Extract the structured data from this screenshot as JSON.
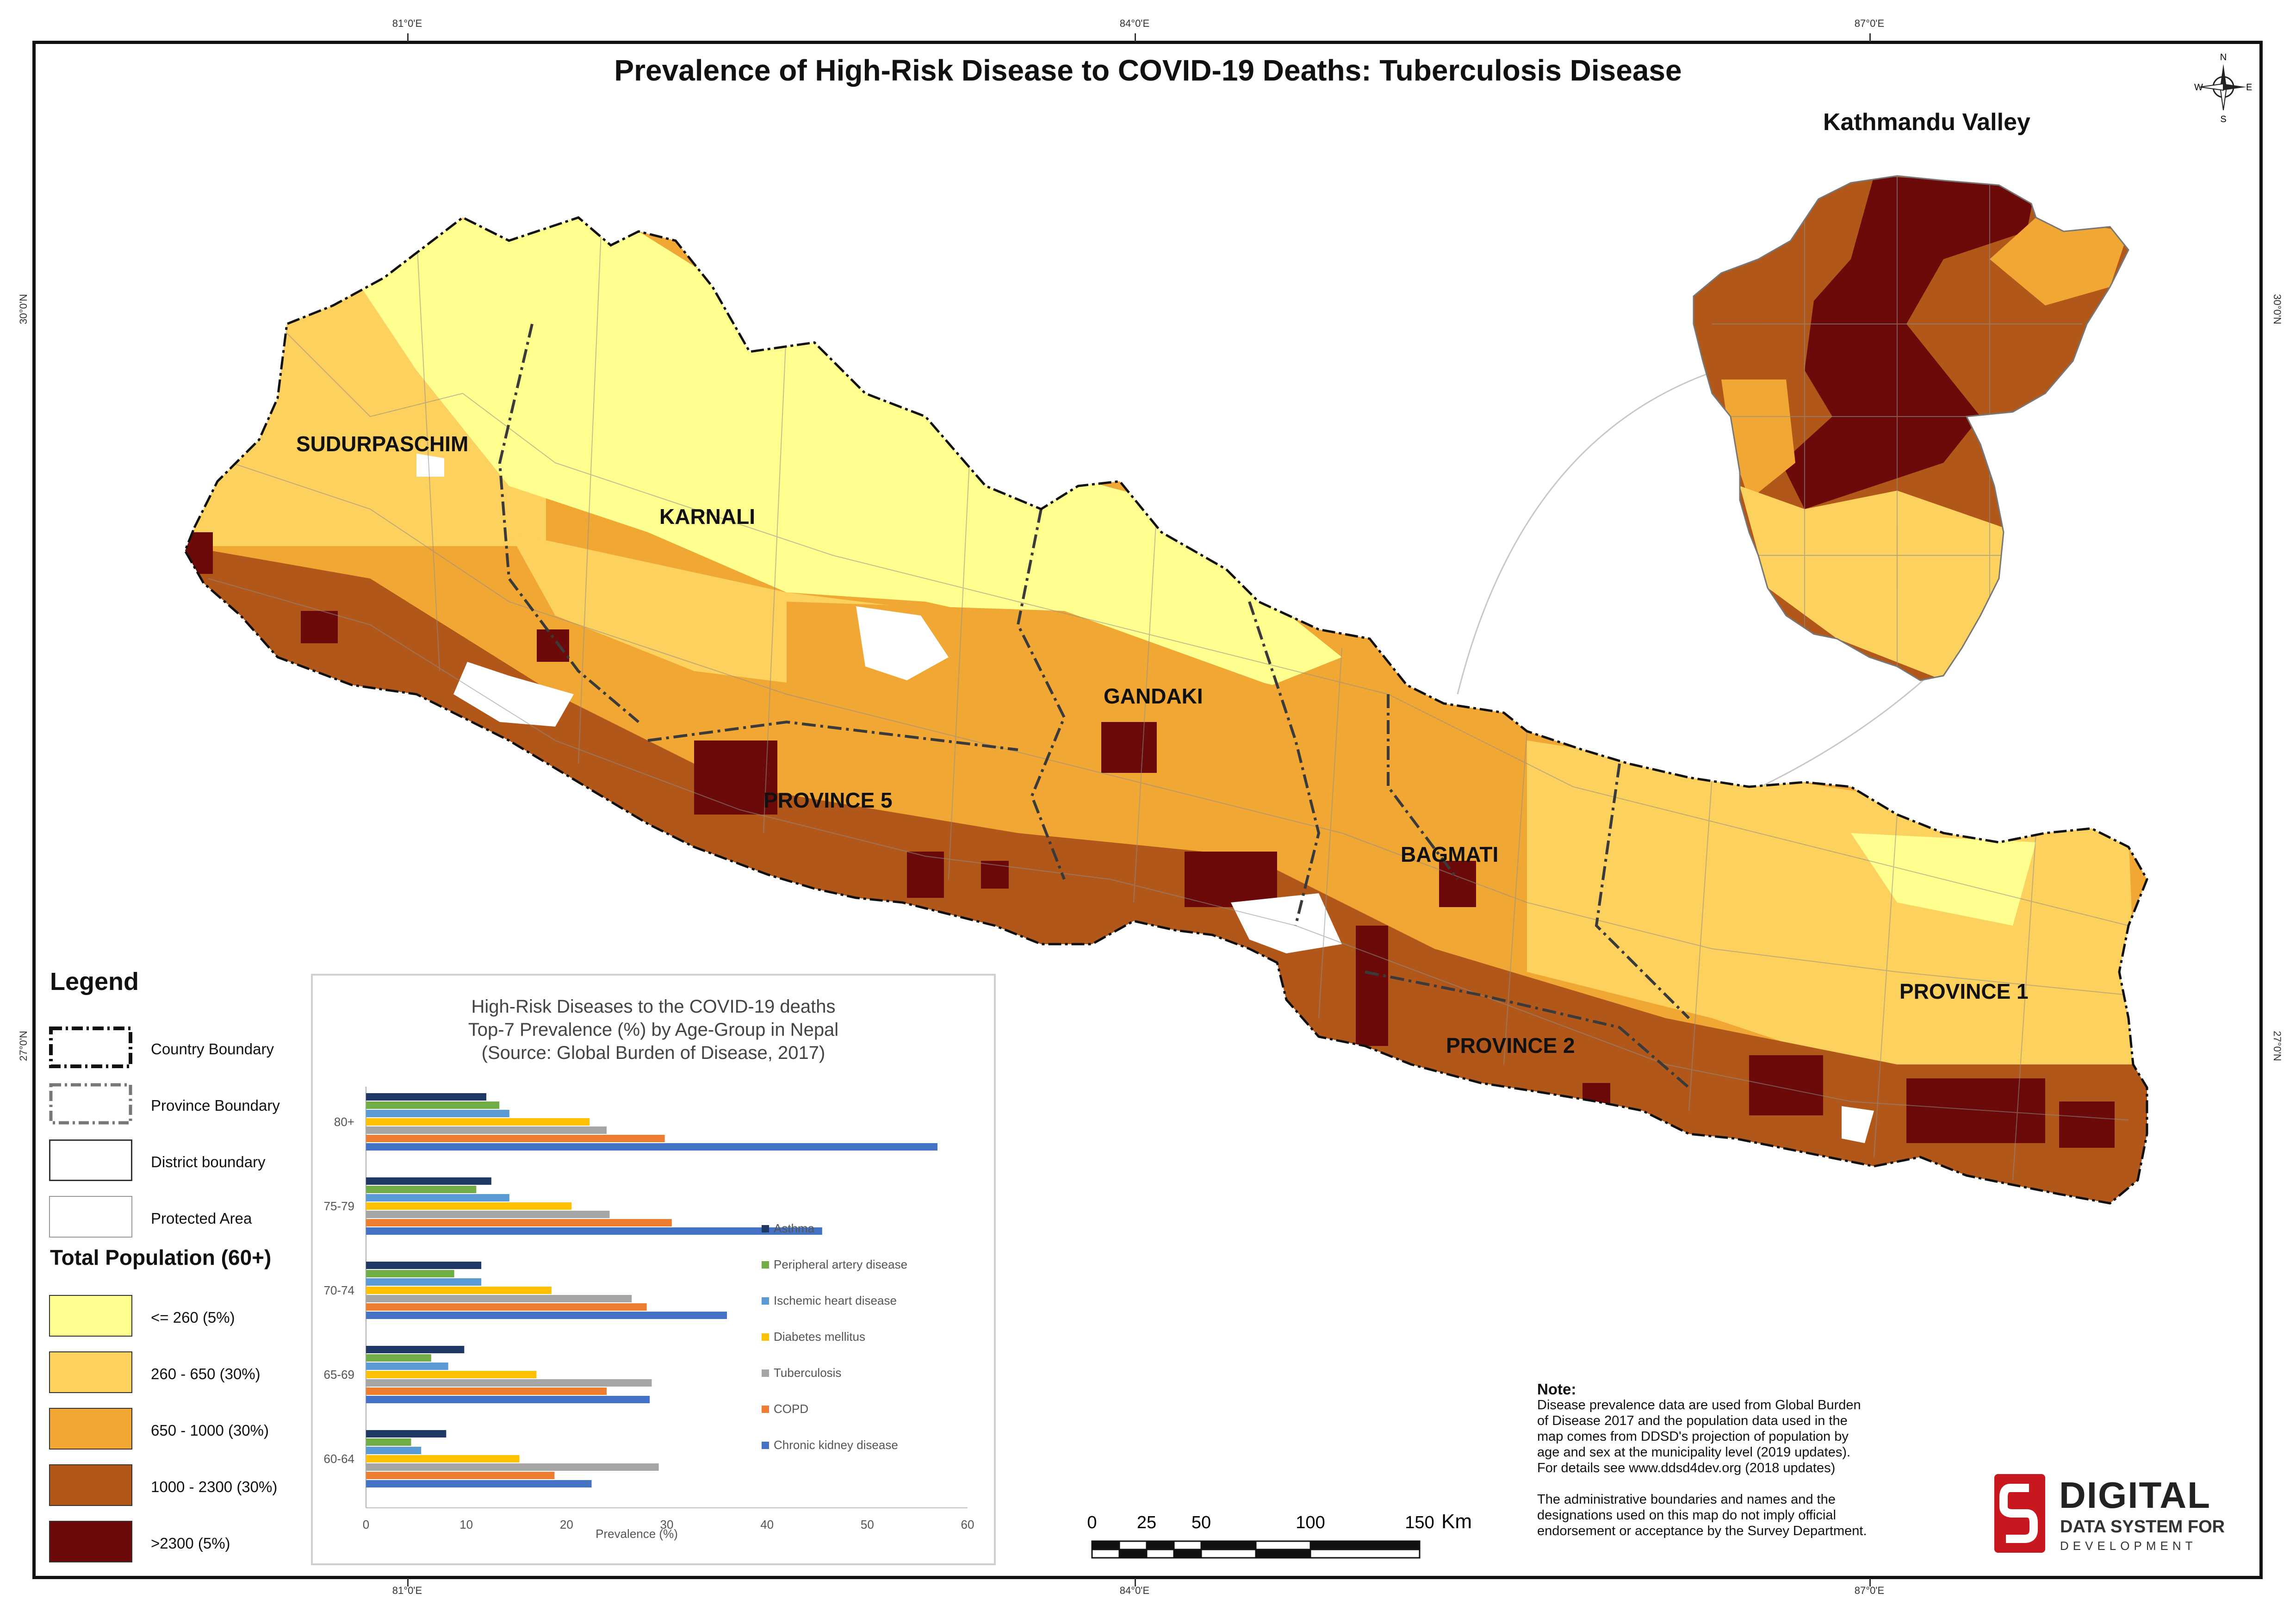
{
  "map": {
    "title": "Prevalence of High-Risk Disease to COVID-19 Deaths: Tuberculosis Disease",
    "inset_title": "Kathmandu Valley",
    "graticule": {
      "top": [
        "81°0'E",
        "84°0'E",
        "87°0'E"
      ],
      "bottom": [
        "81°0'E",
        "84°0'E",
        "87°0'E"
      ],
      "left": [
        "30°0'N",
        "27°0'N"
      ],
      "right": [
        "30°0'N",
        "27°0'N"
      ]
    },
    "provinces": [
      {
        "name": "SUDURPASCHIM"
      },
      {
        "name": "KARNALI"
      },
      {
        "name": "GANDAKI"
      },
      {
        "name": "PROVINCE 5"
      },
      {
        "name": "BAGMATI"
      },
      {
        "name": "PROVINCE 2"
      },
      {
        "name": "PROVINCE 1"
      }
    ],
    "colors": {
      "class1": "#ffff8f",
      "class2": "#fcd15d",
      "class3": "#f1a733",
      "class4": "#b1571a",
      "class5": "#6b0a08",
      "boundary": "#999999"
    },
    "compass": {
      "n": "N",
      "s": "S",
      "e": "E",
      "w": "W"
    }
  },
  "legend": {
    "title": "Legend",
    "boundaries": [
      {
        "label": "Country Boundary",
        "style": "dash-dot-heavy"
      },
      {
        "label": "Province Boundary",
        "style": "dash-dot-gray"
      },
      {
        "label": "District boundary",
        "style": "solid-thin"
      },
      {
        "label": "Protected Area",
        "style": "white-fill"
      }
    ],
    "population_title": "Total Population (60+)",
    "classes": [
      {
        "label": "<= 260 (5%)",
        "color": "#ffff8f"
      },
      {
        "label": "260 - 650 (30%)",
        "color": "#fcd15d"
      },
      {
        "label": "650 - 1000 (30%)",
        "color": "#f1a733"
      },
      {
        "label": "1000 - 2300 (30%)",
        "color": "#b1571a"
      },
      {
        "label": ">2300 (5%)",
        "color": "#6b0a08"
      }
    ]
  },
  "chart_data": {
    "type": "bar",
    "orientation": "horizontal",
    "title": [
      "High-Risk Diseases to the COVID-19 deaths",
      "Top-7 Prevalence (%) by Age-Group in Nepal",
      "(Source: Global Burden of Disease, 2017)"
    ],
    "xlabel": "Prevalence (%)",
    "ylabel": "",
    "xlim": [
      0,
      60
    ],
    "xticks": [
      0,
      10,
      20,
      30,
      40,
      50,
      60
    ],
    "categories": [
      "80+",
      "75-79",
      "70-74",
      "65-69",
      "60-64"
    ],
    "series": [
      {
        "name": "Asthma",
        "color": "#203864",
        "values": [
          12,
          12.5,
          11.5,
          9.8,
          8
        ]
      },
      {
        "name": "Peripheral artery disease",
        "color": "#70ad47",
        "values": [
          13.3,
          11,
          8.8,
          6.5,
          4.5
        ]
      },
      {
        "name": "Ischemic heart disease",
        "color": "#5b9bd5",
        "values": [
          14.3,
          14.3,
          11.5,
          8.2,
          5.5
        ]
      },
      {
        "name": "Diabetes mellitus",
        "color": "#ffc000",
        "values": [
          22.3,
          20.5,
          18.5,
          17,
          15.3
        ]
      },
      {
        "name": "Tuberculosis",
        "color": "#a5a5a5",
        "values": [
          24,
          24.3,
          26.5,
          28.5,
          29.2
        ]
      },
      {
        "name": "COPD",
        "color": "#ed7d31",
        "values": [
          29.8,
          30.5,
          28,
          24,
          18.8
        ]
      },
      {
        "name": "Chronic kidney disease",
        "color": "#4472c4",
        "values": [
          57,
          45.5,
          36,
          28.3,
          22.5
        ]
      }
    ]
  },
  "note": {
    "title": "Note:",
    "lines": [
      "Disease prevalence data are used from Global Burden",
      " of Disease 2017 and the population data used in the",
      "map comes from DDSD's projection of population by",
      "age and sex at the municipality level (2019 updates).",
      "For details see www.ddsd4dev.org (2018 updates)"
    ],
    "lines2": [
      "The administrative boundaries and names and the",
      " designations used on this map do not imply official",
      " endorsement or acceptance by the Survey Department."
    ]
  },
  "scalebar": {
    "labels": [
      "0",
      "25",
      "50",
      "100",
      "150"
    ],
    "unit": "Km"
  },
  "logo": {
    "name": "DIGITAL",
    "sub1": "DATA SYSTEM FOR",
    "sub2": "DEVELOPMENT"
  }
}
